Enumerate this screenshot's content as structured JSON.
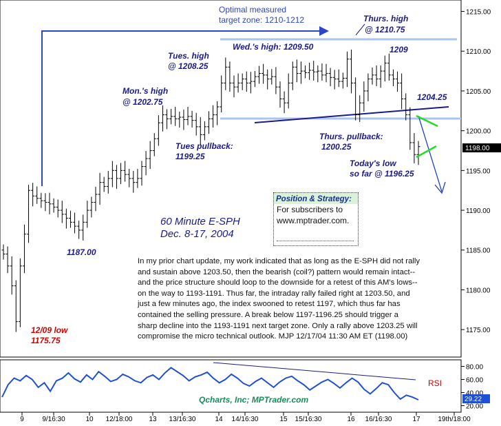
{
  "chart_data": {
    "type": "candlestick",
    "title": "60 Minute E-SPH",
    "subtitle": "Dec. 8-17, 2004",
    "price_axis": {
      "ylim": [
        1172.5,
        1216.0
      ],
      "ticks": [
        "1215.00",
        "1210.00",
        "1205.00",
        "1200.00",
        "1195.00",
        "1190.00",
        "1185.00",
        "1180.00",
        "1175.00"
      ],
      "current_price": "1198.00"
    },
    "time_axis": {
      "ticks": [
        "9",
        "9/16:30",
        "10",
        "12/18:00",
        "13",
        "13/16:30",
        "14",
        "14/16:30",
        "15",
        "15/16:30",
        "16",
        "16/16:30",
        "17",
        "19th/18:00"
      ]
    },
    "bars_closes": [
      1184.5,
      1183,
      1180.5,
      1176,
      1183,
      1187,
      1192.5,
      1191.8,
      1191.5,
      1191.2,
      1191,
      1190.8,
      1190.4,
      1190,
      1189.5,
      1189,
      1188.5,
      1188,
      1187.5,
      1188.5,
      1190,
      1191,
      1192,
      1193.5,
      1193,
      1194,
      1195,
      1194,
      1195,
      1194.5,
      1194,
      1193.5,
      1194,
      1195.5,
      1196.5,
      1197.5,
      1199,
      1201,
      1202,
      1201.5,
      1201.8,
      1201.5,
      1201.7,
      1201.4,
      1201.8,
      1201.3,
      1200.5,
      1199.5,
      1200.5,
      1201.5,
      1202,
      1203,
      1206,
      1208,
      1206,
      1205.5,
      1206,
      1206.5,
      1206,
      1206.2,
      1206.8,
      1207.2,
      1207,
      1206.5,
      1206.8,
      1205.5,
      1204,
      1203.5,
      1206,
      1208,
      1207.2,
      1207.5,
      1207.3,
      1207.6,
      1207.4,
      1207.5,
      1207,
      1207.2,
      1206.7,
      1206.5,
      1206.2,
      1206.6,
      1209,
      1206,
      1202,
      1203.5,
      1205,
      1206.5,
      1207,
      1206.5,
      1207.5,
      1208.5,
      1207,
      1206.5,
      1206,
      1204,
      1202,
      1198.5,
      1197,
      1198
    ],
    "horizontal_levels": [
      1210.5,
      1201.5
    ],
    "annotations": {
      "target_zone": [
        "Optimal measured",
        "target zone: 1210-1212"
      ],
      "thurs_high": [
        "Thurs. high",
        "@ 1210.75"
      ],
      "wed_high": "Wed.'s high: 1209.50",
      "tues_high": [
        "Tues. high",
        "@ 1208.25"
      ],
      "mons_high": [
        "Mon.'s high",
        "@ 1202.75"
      ],
      "level_1209": "1209",
      "level_1204": "1204.25",
      "tues_pullback": [
        "Tues pullback:",
        "1199.25"
      ],
      "thurs_pullback": [
        "Thurs. pullback:",
        "1200.25"
      ],
      "todays_low": [
        "Today's low",
        "so far @ 1196.25"
      ],
      "low_1187": "1187.00",
      "low_1209": [
        "12/09 low",
        "1175.75"
      ]
    },
    "rsi": {
      "label": "RSI",
      "ticks": [
        "80.00",
        "60.00",
        "40.00",
        "20.00"
      ],
      "current": "29.22",
      "ylim": [
        10,
        90
      ]
    },
    "footer_credit": "Qcharts, Inc; MPTrader.com"
  },
  "strategy_box": {
    "title": "Position & Strategy:",
    "lines": [
      "For subscribers to",
      "www.mptrader.com."
    ]
  },
  "commentary": [
    "In my prior chart update, my work indicated that as long as the E-SPH did not rally",
    "and sustain above 1203.50, then the bearish (coil?) pattern would remain intact--",
    "and the price structure should loop to the downside for a retest of this AM's lows--",
    "on the way to 1193-1191. Thus far, the intraday rally failed right at 1203.50, and",
    "just a few minutes ago, the index swooned to retest 1197, which thus far has",
    "contained the selling pressure. A break below 1197-1196.25 should trigger a",
    "sharp decline into the 1193-1191 next target zone. Only a rally above 1203.25 will",
    "compromise the micro technical outlook.  MJP 12/17/04  11:30 AM  ET (1198.00)"
  ],
  "colors": {
    "price_bars": "#000000",
    "levels": "#a9c4ee",
    "trend": "#1a1a8c",
    "target_arrow": "#2d46c8",
    "rsi_line": "#1f4fd6",
    "current_tag": "#000000",
    "green_lines": "#22dd22",
    "annotation": "#1a1a8c",
    "low_annotation": "#d40000"
  }
}
